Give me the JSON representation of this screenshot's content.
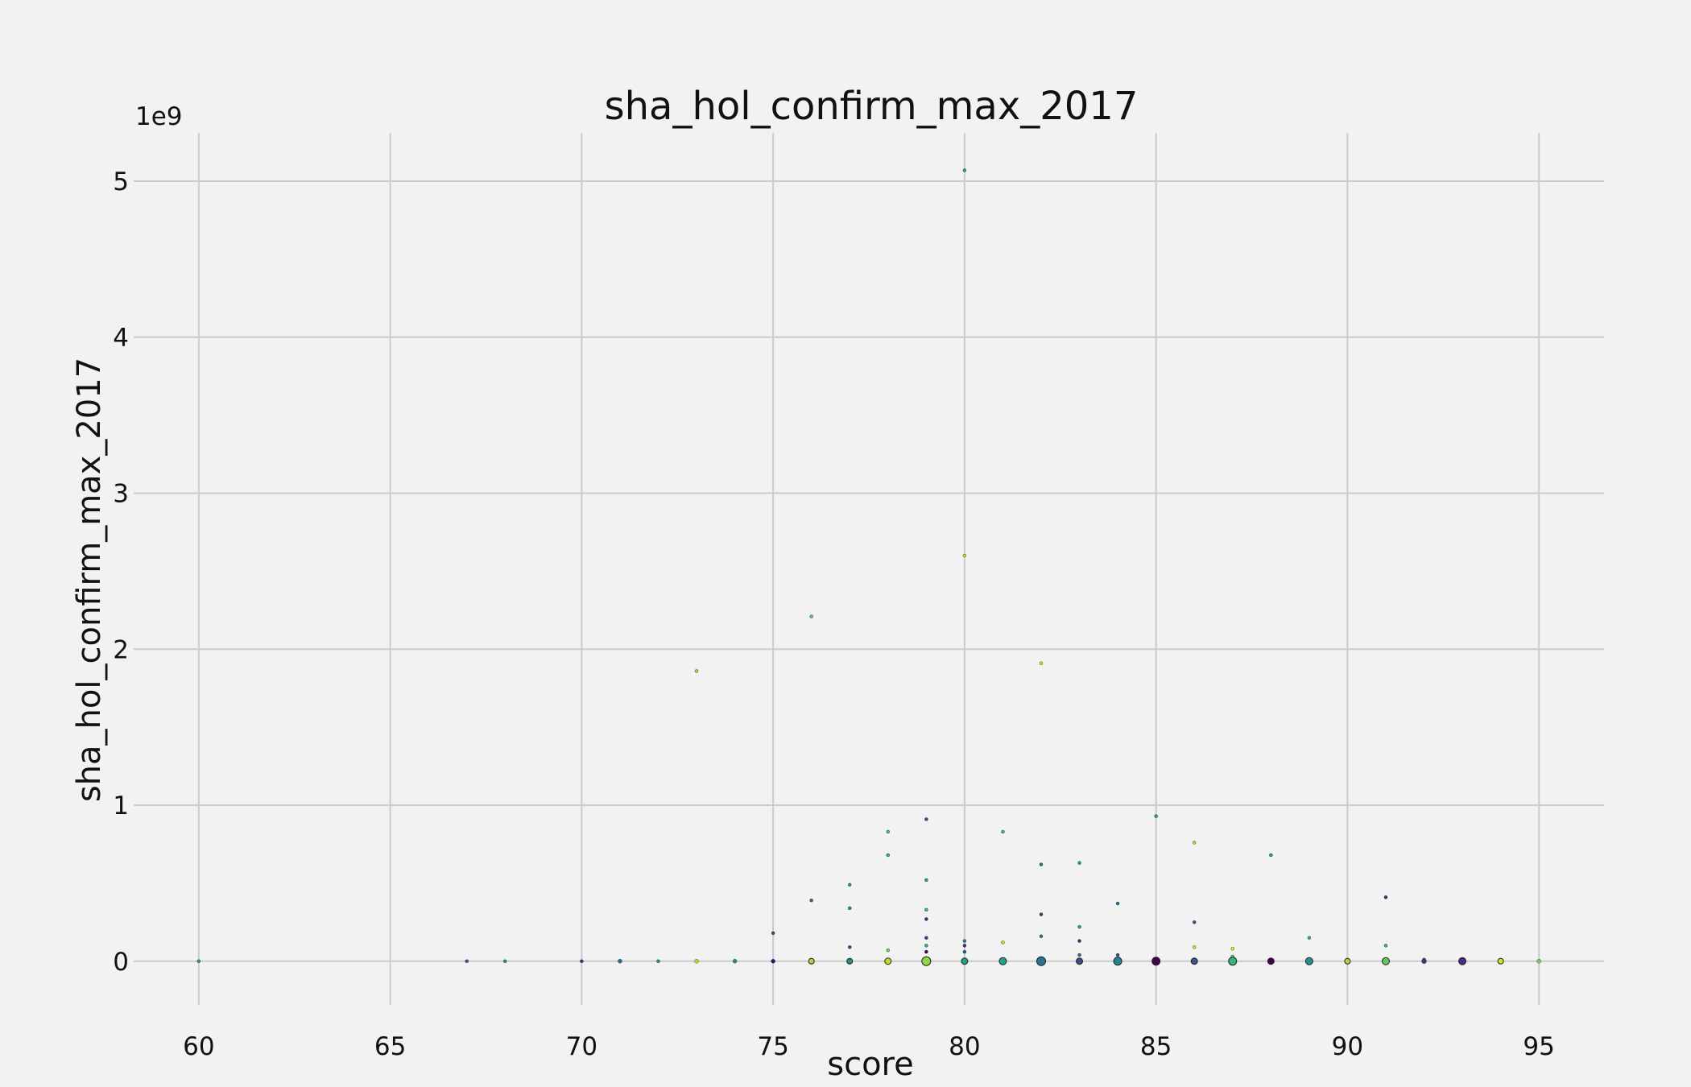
{
  "chart_data": {
    "type": "scatter",
    "title": "sha_hol_confirm_max_2017",
    "xlabel": "score",
    "ylabel": "sha_hol_confirm_max_2017",
    "y_offset_label": "1e9",
    "xlim": [
      58.3,
      96.7
    ],
    "ylim": [
      -0.28,
      5.31
    ],
    "x_ticks": [
      60,
      65,
      70,
      75,
      80,
      85,
      90,
      95
    ],
    "y_ticks": [
      0,
      1,
      2,
      3,
      4,
      5
    ],
    "grid": true,
    "legend": "none",
    "y_units": "1e9",
    "points": [
      {
        "x": 80,
        "y": 5.07,
        "r": 2,
        "color": "#22a884"
      },
      {
        "x": 80,
        "y": 2.6,
        "r": 2,
        "color": "#bddf26"
      },
      {
        "x": 76,
        "y": 2.21,
        "r": 2,
        "color": "#5ec962"
      },
      {
        "x": 82,
        "y": 1.91,
        "r": 2,
        "color": "#d0e11c"
      },
      {
        "x": 73,
        "y": 1.86,
        "r": 2,
        "color": "#a5db36"
      },
      {
        "x": 85,
        "y": 0.93,
        "r": 2,
        "color": "#1f9e89"
      },
      {
        "x": 79,
        "y": 0.91,
        "r": 2,
        "color": "#3e4a89"
      },
      {
        "x": 78,
        "y": 0.83,
        "r": 2,
        "color": "#4ac16d"
      },
      {
        "x": 81,
        "y": 0.83,
        "r": 2,
        "color": "#35b779"
      },
      {
        "x": 86,
        "y": 0.76,
        "r": 2,
        "color": "#b5de2b"
      },
      {
        "x": 78,
        "y": 0.68,
        "r": 2,
        "color": "#2ab07f"
      },
      {
        "x": 88,
        "y": 0.68,
        "r": 2,
        "color": "#1f9e89"
      },
      {
        "x": 83,
        "y": 0.63,
        "r": 2,
        "color": "#22a884"
      },
      {
        "x": 82,
        "y": 0.62,
        "r": 2,
        "color": "#2a788e"
      },
      {
        "x": 79,
        "y": 0.52,
        "r": 2,
        "color": "#1fa187"
      },
      {
        "x": 77,
        "y": 0.49,
        "r": 2,
        "color": "#1fa187"
      },
      {
        "x": 91,
        "y": 0.41,
        "r": 2,
        "color": "#482878"
      },
      {
        "x": 76,
        "y": 0.39,
        "r": 2,
        "color": "#31688e"
      },
      {
        "x": 84,
        "y": 0.37,
        "r": 2,
        "color": "#2c728e"
      },
      {
        "x": 77,
        "y": 0.34,
        "r": 2,
        "color": "#21918c"
      },
      {
        "x": 79,
        "y": 0.33,
        "r": 2,
        "color": "#35b779"
      },
      {
        "x": 82,
        "y": 0.3,
        "r": 2,
        "color": "#443983"
      },
      {
        "x": 79,
        "y": 0.27,
        "r": 2,
        "color": "#472c7a"
      },
      {
        "x": 86,
        "y": 0.25,
        "r": 2,
        "color": "#3b528b"
      },
      {
        "x": 83,
        "y": 0.22,
        "r": 2,
        "color": "#27ad81"
      },
      {
        "x": 75,
        "y": 0.18,
        "r": 2,
        "color": "#3e4a89"
      },
      {
        "x": 82,
        "y": 0.16,
        "r": 2,
        "color": "#2c728e"
      },
      {
        "x": 89,
        "y": 0.15,
        "r": 2,
        "color": "#35b779"
      },
      {
        "x": 79,
        "y": 0.15,
        "r": 2,
        "color": "#46337f"
      },
      {
        "x": 80,
        "y": 0.13,
        "r": 2,
        "color": "#26828e"
      },
      {
        "x": 83,
        "y": 0.13,
        "r": 2,
        "color": "#472d7b"
      },
      {
        "x": 81,
        "y": 0.12,
        "r": 2,
        "color": "#c2df23"
      },
      {
        "x": 80,
        "y": 0.1,
        "r": 2,
        "color": "#472c7a"
      },
      {
        "x": 79,
        "y": 0.1,
        "r": 2,
        "color": "#2ab07f"
      },
      {
        "x": 91,
        "y": 0.1,
        "r": 2,
        "color": "#35b779"
      },
      {
        "x": 77,
        "y": 0.09,
        "r": 2,
        "color": "#404688"
      },
      {
        "x": 86,
        "y": 0.09,
        "r": 2,
        "color": "#d8e219"
      },
      {
        "x": 87,
        "y": 0.08,
        "r": 2,
        "color": "#dde318"
      },
      {
        "x": 78,
        "y": 0.07,
        "r": 2,
        "color": "#6ccd5a"
      },
      {
        "x": 80,
        "y": 0.06,
        "r": 2,
        "color": "#3b528b"
      },
      {
        "x": 79,
        "y": 0.06,
        "r": 2,
        "color": "#440154"
      },
      {
        "x": 84,
        "y": 0.04,
        "r": 2,
        "color": "#414487"
      },
      {
        "x": 83,
        "y": 0.04,
        "r": 2,
        "color": "#31688e"
      },
      {
        "x": 87,
        "y": 0.03,
        "r": 2,
        "color": "#5ec962"
      },
      {
        "x": 92,
        "y": 0.01,
        "r": 2,
        "color": "#3b528b"
      },
      {
        "x": 60,
        "y": 0.0,
        "r": 2,
        "color": "#1fa187"
      },
      {
        "x": 67,
        "y": 0.0,
        "r": 2,
        "color": "#3b528b"
      },
      {
        "x": 68,
        "y": 0.0,
        "r": 2,
        "color": "#21918c"
      },
      {
        "x": 70,
        "y": 0.0,
        "r": 2,
        "color": "#472d7b"
      },
      {
        "x": 71,
        "y": 0.0,
        "r": 2.5,
        "color": "#2c728e"
      },
      {
        "x": 72,
        "y": 0.0,
        "r": 2,
        "color": "#21918c"
      },
      {
        "x": 73,
        "y": 0.0,
        "r": 2.5,
        "color": "#b5de2b"
      },
      {
        "x": 74,
        "y": 0.0,
        "r": 2.5,
        "color": "#21918c"
      },
      {
        "x": 75,
        "y": 0.0,
        "r": 2.5,
        "color": "#3b0f70"
      },
      {
        "x": 76,
        "y": 0.0,
        "r": 3.5,
        "color": "#a5db36"
      },
      {
        "x": 77,
        "y": 0.0,
        "r": 3.5,
        "color": "#21918c"
      },
      {
        "x": 78,
        "y": 0.0,
        "r": 4,
        "color": "#b5de2b"
      },
      {
        "x": 79,
        "y": 0.0,
        "r": 5.5,
        "color": "#8fd744"
      },
      {
        "x": 80,
        "y": 0.0,
        "r": 4,
        "color": "#1fa187"
      },
      {
        "x": 81,
        "y": 0.0,
        "r": 4.5,
        "color": "#1fa187"
      },
      {
        "x": 82,
        "y": 0.0,
        "r": 5.5,
        "color": "#2c728e"
      },
      {
        "x": 83,
        "y": 0.0,
        "r": 4,
        "color": "#3e4a89"
      },
      {
        "x": 84,
        "y": 0.0,
        "r": 5,
        "color": "#26828e"
      },
      {
        "x": 85,
        "y": 0.0,
        "r": 5,
        "color": "#440154"
      },
      {
        "x": 86,
        "y": 0.0,
        "r": 4,
        "color": "#3b528b"
      },
      {
        "x": 87,
        "y": 0.0,
        "r": 5,
        "color": "#35b779"
      },
      {
        "x": 88,
        "y": 0.0,
        "r": 4,
        "color": "#440154"
      },
      {
        "x": 89,
        "y": 0.0,
        "r": 4.5,
        "color": "#21918c"
      },
      {
        "x": 90,
        "y": 0.0,
        "r": 3.5,
        "color": "#addc30"
      },
      {
        "x": 91,
        "y": 0.0,
        "r": 4.5,
        "color": "#5ec962"
      },
      {
        "x": 92,
        "y": 0.0,
        "r": 3,
        "color": "#46337f"
      },
      {
        "x": 93,
        "y": 0.0,
        "r": 4.5,
        "color": "#472d7b"
      },
      {
        "x": 94,
        "y": 0.0,
        "r": 3.5,
        "color": "#d8e219"
      },
      {
        "x": 95,
        "y": 0.0,
        "r": 2.5,
        "color": "#7ad151"
      }
    ]
  }
}
